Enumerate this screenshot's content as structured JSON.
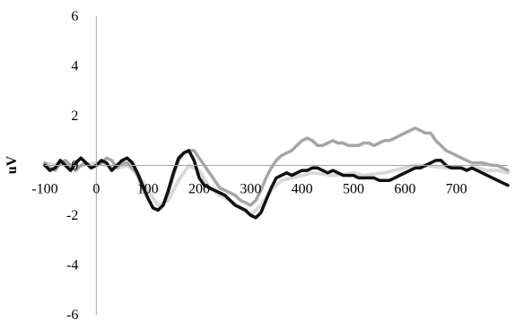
{
  "chart_data": {
    "type": "line",
    "title": "",
    "xlabel": "",
    "ylabel": "uV",
    "xlim": [
      -100,
      800
    ],
    "ylim": [
      -6,
      6
    ],
    "x_ticks": [
      -100,
      0,
      100,
      200,
      300,
      400,
      500,
      600,
      700
    ],
    "y_ticks": [
      -6,
      -4,
      -2,
      0,
      2,
      4,
      6
    ],
    "grid": false,
    "legend": "none",
    "series": [
      {
        "color": "#d9d9d9",
        "width": 4,
        "x": [
          -100,
          -80,
          -60,
          -40,
          -20,
          0,
          20,
          40,
          60,
          80,
          100,
          120,
          140,
          160,
          180,
          200,
          220,
          240,
          260,
          280,
          300,
          320,
          340,
          360,
          380,
          400,
          420,
          440,
          460,
          480,
          500,
          520,
          540,
          560,
          580,
          600,
          620,
          640,
          660,
          680,
          700,
          720,
          740,
          760,
          780,
          800
        ],
        "y": [
          0.1,
          0.0,
          0.1,
          -0.1,
          0.05,
          0.1,
          0.0,
          -0.1,
          0.0,
          -0.3,
          -1.0,
          -1.6,
          -1.4,
          -0.6,
          0.0,
          -0.2,
          -0.9,
          -1.2,
          -1.4,
          -1.7,
          -2.0,
          -1.6,
          -1.0,
          -0.6,
          -0.5,
          -0.4,
          -0.3,
          -0.35,
          -0.4,
          -0.35,
          -0.3,
          -0.4,
          -0.35,
          -0.3,
          -0.2,
          -0.1,
          0.0,
          0.0,
          -0.05,
          -0.1,
          -0.1,
          -0.15,
          -0.1,
          -0.2,
          -0.2,
          -0.3
        ]
      },
      {
        "color": "#a6a6a6",
        "width": 3.5,
        "x": [
          -100,
          -90,
          -80,
          -70,
          -60,
          -50,
          -40,
          -30,
          -20,
          -10,
          0,
          10,
          20,
          30,
          40,
          50,
          60,
          70,
          80,
          90,
          100,
          110,
          120,
          130,
          140,
          150,
          160,
          170,
          180,
          190,
          200,
          210,
          220,
          230,
          240,
          250,
          260,
          270,
          280,
          290,
          300,
          310,
          320,
          330,
          340,
          350,
          360,
          370,
          380,
          390,
          400,
          410,
          420,
          430,
          440,
          450,
          460,
          470,
          480,
          490,
          500,
          510,
          520,
          530,
          540,
          550,
          560,
          570,
          580,
          590,
          600,
          610,
          620,
          630,
          640,
          650,
          660,
          670,
          680,
          690,
          700,
          710,
          720,
          730,
          740,
          750,
          760,
          770,
          780,
          790,
          800
        ],
        "y": [
          0.1,
          -0.1,
          -0.2,
          0.1,
          0.2,
          0.0,
          -0.2,
          0.0,
          0.1,
          -0.1,
          0.0,
          0.1,
          0.3,
          0.2,
          -0.1,
          0.1,
          0.1,
          -0.1,
          -0.4,
          -0.9,
          -1.3,
          -1.7,
          -1.8,
          -1.6,
          -1.1,
          -0.4,
          0.2,
          0.5,
          0.6,
          0.6,
          0.3,
          0.0,
          -0.3,
          -0.6,
          -0.9,
          -1.0,
          -1.1,
          -1.2,
          -1.4,
          -1.5,
          -1.6,
          -1.4,
          -1.0,
          -0.5,
          -0.1,
          0.2,
          0.4,
          0.5,
          0.6,
          0.8,
          1.0,
          1.1,
          1.0,
          0.8,
          0.8,
          0.9,
          1.0,
          0.9,
          0.9,
          0.8,
          0.8,
          0.8,
          0.9,
          0.9,
          0.8,
          0.9,
          1.0,
          1.0,
          1.1,
          1.2,
          1.3,
          1.4,
          1.5,
          1.4,
          1.3,
          1.3,
          1.0,
          0.8,
          0.6,
          0.5,
          0.4,
          0.3,
          0.2,
          0.1,
          0.1,
          0.1,
          0.05,
          0.0,
          0.0,
          -0.1,
          -0.2
        ]
      },
      {
        "color": "#111111",
        "width": 3.5,
        "x": [
          -100,
          -90,
          -80,
          -70,
          -60,
          -50,
          -40,
          -30,
          -20,
          -10,
          0,
          10,
          20,
          30,
          40,
          50,
          60,
          70,
          80,
          90,
          100,
          110,
          120,
          130,
          140,
          150,
          160,
          170,
          180,
          190,
          200,
          210,
          220,
          230,
          240,
          250,
          260,
          270,
          280,
          290,
          300,
          310,
          320,
          330,
          340,
          350,
          360,
          370,
          380,
          390,
          400,
          410,
          420,
          430,
          440,
          450,
          460,
          470,
          480,
          490,
          500,
          510,
          520,
          530,
          540,
          550,
          560,
          570,
          580,
          590,
          600,
          610,
          620,
          630,
          640,
          650,
          660,
          670,
          680,
          690,
          700,
          710,
          720,
          730,
          740,
          750,
          760,
          770,
          780,
          790,
          800
        ],
        "y": [
          0.0,
          -0.2,
          -0.1,
          0.2,
          0.0,
          -0.2,
          0.1,
          0.3,
          0.1,
          -0.1,
          0.0,
          0.2,
          0.1,
          -0.2,
          0.0,
          0.2,
          0.3,
          0.1,
          -0.3,
          -0.8,
          -1.3,
          -1.7,
          -1.8,
          -1.6,
          -1.0,
          -0.3,
          0.3,
          0.5,
          0.6,
          0.2,
          -0.5,
          -0.8,
          -0.9,
          -1.0,
          -1.1,
          -1.2,
          -1.4,
          -1.6,
          -1.7,
          -1.8,
          -2.0,
          -2.1,
          -1.9,
          -1.4,
          -0.9,
          -0.5,
          -0.4,
          -0.3,
          -0.4,
          -0.3,
          -0.2,
          -0.2,
          -0.1,
          -0.1,
          -0.2,
          -0.3,
          -0.2,
          -0.3,
          -0.4,
          -0.4,
          -0.4,
          -0.5,
          -0.5,
          -0.5,
          -0.5,
          -0.6,
          -0.6,
          -0.6,
          -0.5,
          -0.4,
          -0.3,
          -0.2,
          -0.1,
          -0.1,
          0.0,
          0.1,
          0.2,
          0.2,
          0.0,
          -0.1,
          -0.1,
          -0.1,
          -0.2,
          -0.1,
          -0.2,
          -0.3,
          -0.4,
          -0.5,
          -0.6,
          -0.7,
          -0.8
        ]
      }
    ]
  }
}
